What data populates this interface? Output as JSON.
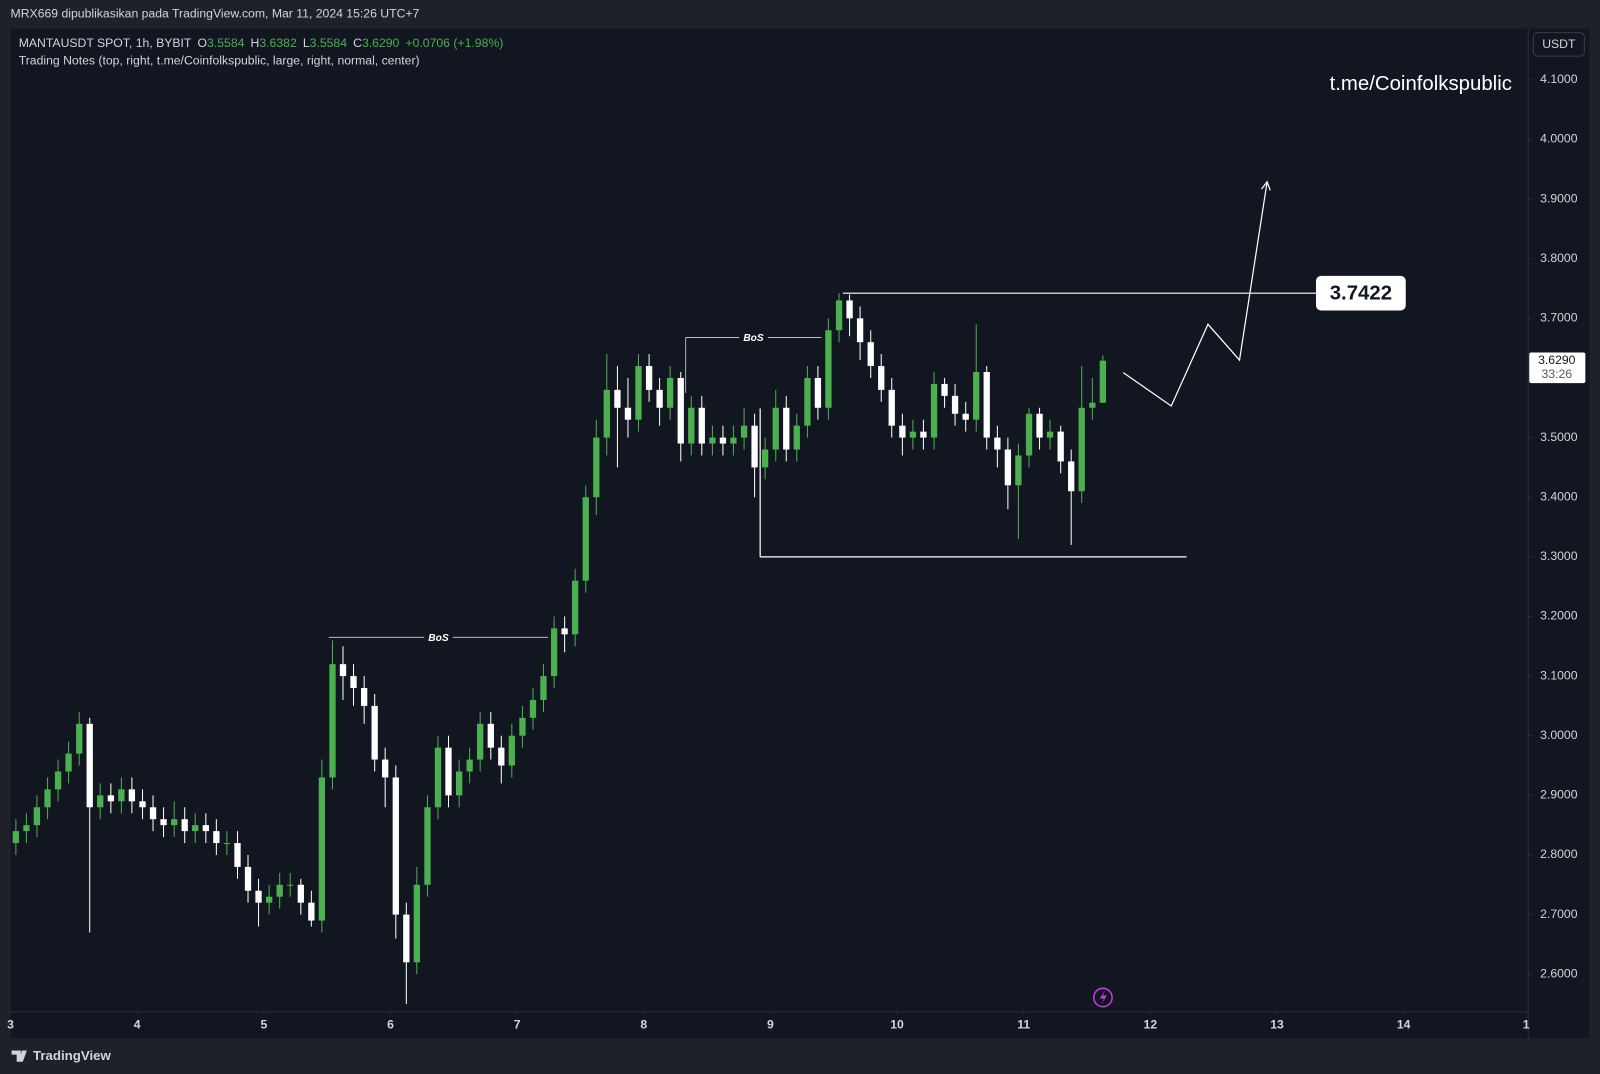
{
  "top_bar": {
    "text": "MRX669 dipublikasikan pada TradingView.com, Mar 11, 2024 15:26 UTC+7"
  },
  "chart_data": {
    "type": "candlestick",
    "symbol": "MANTAUSDT SPOT, 1h, BYBIT",
    "legend": [
      {
        "key": "O",
        "value": "3.5584"
      },
      {
        "key": "H",
        "value": "3.6382"
      },
      {
        "key": "L",
        "value": "3.5584"
      },
      {
        "key": "C",
        "value": "3.6290"
      }
    ],
    "change": "+0.0706 (+1.98%)",
    "indicator": "Trading Notes (top, right, t.me/Coinfolkspublic, large, right, normal, center)",
    "watermark": "t.me/Coinfolkspublic",
    "currency": "USDT",
    "up_color": "#4caf50",
    "down_color": "#ffffff",
    "x": [
      3.042,
      3.125,
      3.208,
      3.292,
      3.375,
      3.458,
      3.542,
      3.625,
      3.708,
      3.792,
      3.875,
      3.958,
      4.042,
      4.125,
      4.208,
      4.292,
      4.375,
      4.458,
      4.542,
      4.625,
      4.708,
      4.792,
      4.875,
      4.958,
      5.042,
      5.125,
      5.208,
      5.292,
      5.375,
      5.458,
      5.542,
      5.625,
      5.708,
      5.792,
      5.875,
      5.958,
      6.042,
      6.125,
      6.208,
      6.292,
      6.375,
      6.458,
      6.542,
      6.625,
      6.708,
      6.792,
      6.875,
      6.958,
      7.042,
      7.125,
      7.208,
      7.292,
      7.375,
      7.458,
      7.542,
      7.625,
      7.708,
      7.792,
      7.875,
      7.958,
      8.042,
      8.125,
      8.208,
      8.292,
      8.375,
      8.458,
      8.542,
      8.625,
      8.708,
      8.792,
      8.875,
      8.958,
      9.042,
      9.125,
      9.208,
      9.292,
      9.375,
      9.458,
      9.542,
      9.625,
      9.708,
      9.792,
      9.875,
      9.958,
      10.042,
      10.125,
      10.208,
      10.292,
      10.375,
      10.458,
      10.542,
      10.625,
      10.708,
      10.792,
      10.875,
      10.958,
      11.042,
      11.125,
      11.208,
      11.292,
      11.375,
      11.458,
      11.542,
      11.625
    ],
    "open": [
      2.82,
      2.84,
      2.85,
      2.88,
      2.91,
      2.94,
      2.97,
      3.02,
      2.88,
      2.9,
      2.89,
      2.91,
      2.89,
      2.88,
      2.86,
      2.85,
      2.86,
      2.84,
      2.85,
      2.84,
      2.82,
      2.82,
      2.78,
      2.74,
      2.72,
      2.73,
      2.75,
      2.75,
      2.72,
      2.69,
      2.93,
      3.12,
      3.1,
      3.08,
      3.05,
      2.96,
      2.93,
      2.7,
      2.62,
      2.75,
      2.88,
      2.98,
      2.9,
      2.94,
      2.96,
      3.02,
      2.98,
      2.95,
      3.0,
      3.03,
      3.06,
      3.1,
      3.18,
      3.17,
      3.26,
      3.4,
      3.5,
      3.58,
      3.55,
      3.53,
      3.62,
      3.58,
      3.55,
      3.6,
      3.49,
      3.55,
      3.49,
      3.5,
      3.49,
      3.5,
      3.52,
      3.45,
      3.48,
      3.55,
      3.48,
      3.52,
      3.6,
      3.55,
      3.68,
      3.73,
      3.7,
      3.66,
      3.62,
      3.58,
      3.52,
      3.5,
      3.51,
      3.5,
      3.59,
      3.57,
      3.54,
      3.53,
      3.61,
      3.5,
      3.48,
      3.42,
      3.47,
      3.54,
      3.5,
      3.51,
      3.46,
      3.41,
      3.55,
      3.5584
    ],
    "high": [
      2.86,
      2.87,
      2.9,
      2.93,
      2.96,
      2.99,
      3.04,
      3.03,
      2.92,
      2.92,
      2.93,
      2.93,
      2.91,
      2.9,
      2.88,
      2.89,
      2.88,
      2.87,
      2.87,
      2.86,
      2.84,
      2.84,
      2.8,
      2.76,
      2.75,
      2.77,
      2.77,
      2.76,
      2.74,
      2.96,
      3.16,
      3.15,
      3.12,
      3.1,
      3.07,
      2.98,
      2.95,
      2.72,
      2.78,
      2.9,
      3.0,
      3.0,
      2.96,
      2.98,
      3.04,
      3.04,
      3.0,
      3.02,
      3.05,
      3.08,
      3.12,
      3.2,
      3.2,
      3.28,
      3.42,
      3.53,
      3.64,
      3.62,
      3.6,
      3.64,
      3.64,
      3.6,
      3.62,
      3.61,
      3.57,
      3.57,
      3.52,
      3.52,
      3.52,
      3.55,
      3.54,
      3.5,
      3.58,
      3.57,
      3.54,
      3.62,
      3.62,
      3.7,
      3.7422,
      3.74,
      3.72,
      3.68,
      3.64,
      3.6,
      3.54,
      3.53,
      3.53,
      3.61,
      3.6,
      3.59,
      3.56,
      3.69,
      3.62,
      3.52,
      3.5,
      3.49,
      3.55,
      3.55,
      3.53,
      3.52,
      3.48,
      3.62,
      3.6,
      3.6382
    ],
    "low": [
      2.8,
      2.82,
      2.83,
      2.86,
      2.89,
      2.92,
      2.95,
      2.67,
      2.86,
      2.87,
      2.87,
      2.87,
      2.86,
      2.84,
      2.83,
      2.83,
      2.82,
      2.82,
      2.82,
      2.8,
      2.8,
      2.76,
      2.72,
      2.68,
      2.7,
      2.71,
      2.73,
      2.7,
      2.68,
      2.67,
      2.91,
      3.06,
      3.05,
      3.02,
      2.94,
      2.88,
      2.66,
      2.55,
      2.6,
      2.73,
      2.86,
      2.88,
      2.88,
      2.92,
      2.94,
      2.96,
      2.92,
      2.93,
      2.98,
      3.01,
      3.04,
      3.08,
      3.14,
      3.15,
      3.24,
      3.37,
      3.47,
      3.45,
      3.5,
      3.51,
      3.56,
      3.52,
      3.53,
      3.46,
      3.47,
      3.47,
      3.47,
      3.47,
      3.47,
      3.48,
      3.4,
      3.43,
      3.46,
      3.46,
      3.46,
      3.5,
      3.53,
      3.53,
      3.66,
      3.67,
      3.63,
      3.6,
      3.56,
      3.5,
      3.47,
      3.48,
      3.48,
      3.48,
      3.55,
      3.52,
      3.51,
      3.51,
      3.48,
      3.45,
      3.38,
      3.33,
      3.45,
      3.48,
      3.48,
      3.44,
      3.32,
      3.39,
      3.53,
      3.5584
    ],
    "close": [
      2.84,
      2.85,
      2.88,
      2.91,
      2.94,
      2.97,
      3.02,
      2.88,
      2.9,
      2.89,
      2.91,
      2.89,
      2.88,
      2.86,
      2.85,
      2.86,
      2.84,
      2.85,
      2.84,
      2.82,
      2.82,
      2.78,
      2.74,
      2.72,
      2.73,
      2.75,
      2.75,
      2.72,
      2.69,
      2.93,
      3.12,
      3.1,
      3.08,
      3.05,
      2.96,
      2.93,
      2.7,
      2.62,
      2.75,
      2.88,
      2.98,
      2.9,
      2.94,
      2.96,
      3.02,
      2.98,
      2.95,
      3.0,
      3.03,
      3.06,
      3.1,
      3.18,
      3.17,
      3.26,
      3.4,
      3.5,
      3.58,
      3.55,
      3.53,
      3.62,
      3.58,
      3.55,
      3.6,
      3.49,
      3.55,
      3.49,
      3.5,
      3.49,
      3.5,
      3.52,
      3.45,
      3.48,
      3.55,
      3.48,
      3.52,
      3.6,
      3.55,
      3.68,
      3.73,
      3.7,
      3.66,
      3.62,
      3.58,
      3.52,
      3.5,
      3.51,
      3.5,
      3.59,
      3.57,
      3.54,
      3.53,
      3.61,
      3.5,
      3.48,
      3.42,
      3.47,
      3.54,
      3.5,
      3.51,
      3.46,
      3.41,
      3.55,
      3.5584,
      3.629
    ],
    "xlim": [
      3,
      15
    ],
    "xticks": [
      3,
      4,
      5,
      6,
      7,
      8,
      9,
      10,
      11,
      12,
      13,
      14,
      {
        "value": 15,
        "label": "1"
      }
    ],
    "ylim": [
      2.537,
      4.186
    ],
    "yticks": [
      {
        "value": 2.6,
        "label": "2.6000"
      },
      {
        "value": 2.7,
        "label": "2.7000"
      },
      {
        "value": 2.8,
        "label": "2.8000"
      },
      {
        "value": 2.9,
        "label": "2.9000"
      },
      {
        "value": 3.0,
        "label": "3.0000"
      },
      {
        "value": 3.1,
        "label": "3.1000"
      },
      {
        "value": 3.2,
        "label": "3.2000"
      },
      {
        "value": 3.3,
        "label": "3.3000"
      },
      {
        "value": 3.4,
        "label": "3.4000"
      },
      {
        "value": 3.5,
        "label": "3.5000"
      },
      {
        "value": 3.6,
        "label": "3.6000"
      },
      {
        "value": 3.7,
        "label": "3.7000"
      },
      {
        "value": 3.8,
        "label": "3.8000"
      },
      {
        "value": 3.9,
        "label": "3.9000"
      },
      {
        "value": 4.0,
        "label": "4.0000"
      },
      {
        "value": 4.1,
        "label": "4.1000"
      }
    ],
    "grid": false,
    "last_price": {
      "label": "3.6290",
      "countdown": "33:26"
    },
    "drawings": {
      "bos": [
        {
          "label": "BoS",
          "x0": 5.513,
          "x1": 7.244,
          "y": 3.165
        },
        {
          "label": "BoS",
          "x0": 8.331,
          "x1": 9.402,
          "y": 3.668,
          "y_end": 3.575
        }
      ],
      "high_line": {
        "x0": 9.572,
        "x1": 13.308,
        "y": 3.7422,
        "label": "3.7422"
      },
      "support_line": {
        "x0": 8.919,
        "x1": 12.286,
        "y": 3.3,
        "y_top": 3.549
      },
      "projection": {
        "x": [
          11.786,
          12.165,
          12.455,
          12.704,
          12.922
        ],
        "y": [
          3.609,
          3.553,
          3.69,
          3.63,
          3.929
        ]
      }
    }
  },
  "footer": {
    "brand": "TradingView"
  }
}
